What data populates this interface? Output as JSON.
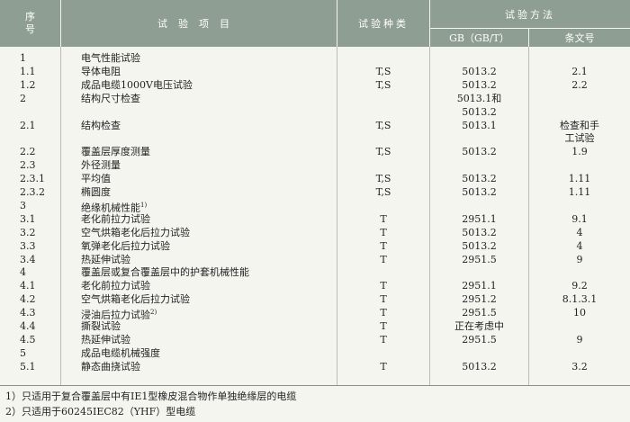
{
  "header": {
    "seq": "序号",
    "item": "试验项目",
    "type": "试验种类",
    "method": "试验方法",
    "gb": "GB（GB/T）",
    "clause": "条文号"
  },
  "rows": [
    {
      "seq": "1",
      "item": "电气性能试验"
    },
    {
      "seq": "1.1",
      "item": "导体电阻",
      "type": "T,S",
      "gb": [
        "5013.2"
      ],
      "clause": [
        "2.1"
      ]
    },
    {
      "seq": "1.2",
      "item": "成品电缆1000V电压试验",
      "type": "T,S",
      "gb": [
        "5013.2"
      ],
      "clause": [
        "2.2"
      ]
    },
    {
      "seq": "2",
      "item": "结构尺寸检查",
      "gb": [
        "5013.1和",
        "5013.2"
      ]
    },
    {
      "seq": "2.1",
      "item": "结构检查",
      "type": "T,S",
      "gb": [
        "5013.1"
      ],
      "clause": [
        "检查和手",
        "工试验"
      ]
    },
    {
      "seq": "2.2",
      "item": "覆盖层厚度测量",
      "type": "T,S",
      "gb": [
        "5013.2"
      ],
      "clause": [
        "1.9"
      ]
    },
    {
      "seq": "2.3",
      "item": "外径测量"
    },
    {
      "seq": "2.3.1",
      "item": "平均值",
      "type": "T,S",
      "gb": [
        "5013.2"
      ],
      "clause": [
        "1.11"
      ]
    },
    {
      "seq": "2.3.2",
      "item": "椭圆度",
      "type": "T,S",
      "gb": [
        "5013.2"
      ],
      "clause": [
        "1.11"
      ]
    },
    {
      "seq": "3",
      "item": "绝缘机械性能",
      "note": "1)"
    },
    {
      "seq": "3.1",
      "item": "老化前拉力试验",
      "type": "T",
      "gb": [
        "2951.1"
      ],
      "clause": [
        "9.1"
      ]
    },
    {
      "seq": "3.2",
      "item": "空气烘箱老化后拉力试验",
      "type": "T",
      "gb": [
        "5013.2"
      ],
      "clause": [
        "4"
      ]
    },
    {
      "seq": "3.3",
      "item": "氧弹老化后拉力试验",
      "type": "T",
      "gb": [
        "5013.2"
      ],
      "clause": [
        "4"
      ]
    },
    {
      "seq": "3.4",
      "item": "热延伸试验",
      "type": "T",
      "gb": [
        "2951.5"
      ],
      "clause": [
        "9"
      ]
    },
    {
      "seq": "4",
      "item": "覆盖层或复合覆盖层中的护套机械性能"
    },
    {
      "seq": "4.1",
      "item": "老化前拉力试验",
      "type": "T",
      "gb": [
        "2951.1"
      ],
      "clause": [
        "9.2"
      ]
    },
    {
      "seq": "4.2",
      "item": "空气烘箱老化后拉力试验",
      "type": "T",
      "gb": [
        "2951.2"
      ],
      "clause": [
        "8.1.3.1"
      ]
    },
    {
      "seq": "4.3",
      "item": "浸油后拉力试验",
      "note": "2)",
      "type": "T",
      "gb": [
        "2951.5"
      ],
      "clause": [
        "10"
      ]
    },
    {
      "seq": "4.4",
      "item": "撕裂试验",
      "type": "T",
      "gb": [
        "正在考虑中"
      ]
    },
    {
      "seq": "4.5",
      "item": "热延伸试验",
      "type": "T",
      "gb": [
        "2951.5"
      ],
      "clause": [
        "9"
      ]
    },
    {
      "seq": "5",
      "item": "成品电缆机械强度"
    },
    {
      "seq": "5.1",
      "item": "静态曲挠试验",
      "type": "T",
      "gb": [
        "5013.2"
      ],
      "clause": [
        "3.2"
      ]
    }
  ],
  "footnotes": [
    "1）只适用于复合覆盖层中有IE1型橡皮混合物作单独绝缘层的电缆",
    "2）只适用于60245IEC82（YHF）型电缆"
  ]
}
